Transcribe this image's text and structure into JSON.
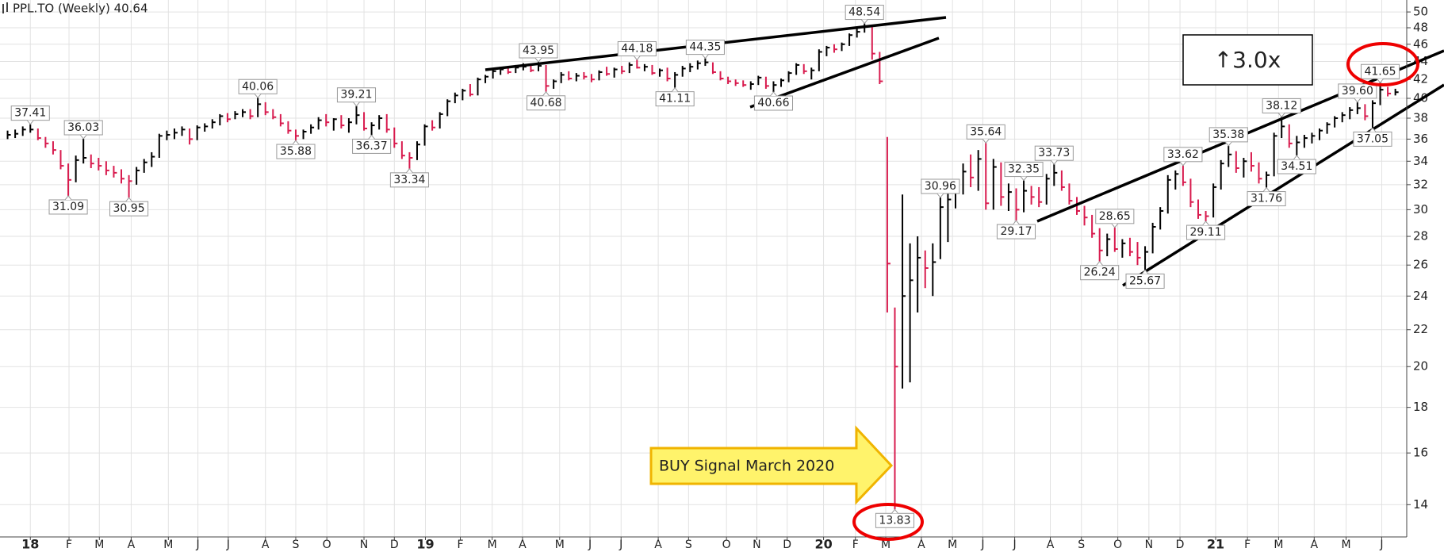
{
  "chart_data": {
    "type": "ohlc",
    "title": "PPL.TO (Weekly) 40.64",
    "log_scale": true,
    "grid": true,
    "up_color": "#000000",
    "down_color": "#d81b4e",
    "ylim": [
      12.88,
      51.57
    ],
    "yticks": [
      14,
      16,
      18,
      20,
      22,
      24,
      26,
      28,
      30,
      32,
      34,
      36,
      38,
      40,
      42,
      44,
      46,
      48,
      50
    ],
    "xlim": [
      -1,
      184.5
    ],
    "xticks": [
      {
        "value": 3.0,
        "label": "18"
      },
      {
        "value": 8.1,
        "label": "F"
      },
      {
        "value": 12.1,
        "label": "M"
      },
      {
        "value": 16.3,
        "label": "A"
      },
      {
        "value": 21.2,
        "label": "M"
      },
      {
        "value": 25.1,
        "label": "J"
      },
      {
        "value": 29.1,
        "label": "J"
      },
      {
        "value": 34.0,
        "label": "A"
      },
      {
        "value": 38.0,
        "label": "S"
      },
      {
        "value": 42.1,
        "label": "O"
      },
      {
        "value": 47.0,
        "label": "N"
      },
      {
        "value": 51.0,
        "label": "D"
      },
      {
        "value": 55.1,
        "label": "19"
      },
      {
        "value": 59.7,
        "label": "F"
      },
      {
        "value": 63.9,
        "label": "M"
      },
      {
        "value": 67.9,
        "label": "A"
      },
      {
        "value": 72.8,
        "label": "M"
      },
      {
        "value": 76.8,
        "label": "J"
      },
      {
        "value": 80.9,
        "label": "J"
      },
      {
        "value": 85.8,
        "label": "A"
      },
      {
        "value": 89.8,
        "label": "S"
      },
      {
        "value": 94.8,
        "label": "O"
      },
      {
        "value": 98.8,
        "label": "N"
      },
      {
        "value": 102.8,
        "label": "D"
      },
      {
        "value": 107.6,
        "label": "20"
      },
      {
        "value": 111.8,
        "label": "F"
      },
      {
        "value": 115.8,
        "label": "M"
      },
      {
        "value": 120.5,
        "label": "A"
      },
      {
        "value": 124.6,
        "label": "M"
      },
      {
        "value": 128.6,
        "label": "J"
      },
      {
        "value": 132.8,
        "label": "J"
      },
      {
        "value": 137.5,
        "label": "A"
      },
      {
        "value": 141.6,
        "label": "S"
      },
      {
        "value": 146.4,
        "label": "O"
      },
      {
        "value": 150.5,
        "label": "N"
      },
      {
        "value": 154.6,
        "label": "D"
      },
      {
        "value": 159.3,
        "label": "21"
      },
      {
        "value": 163.5,
        "label": "F"
      },
      {
        "value": 167.6,
        "label": "M"
      },
      {
        "value": 172.3,
        "label": "A"
      },
      {
        "value": 176.5,
        "label": "M"
      },
      {
        "value": 181.2,
        "label": "J"
      }
    ],
    "high": [
      36.8,
      36.9,
      37.2,
      37.41,
      37.0,
      36.2,
      35.8,
      35.0,
      33.8,
      34.5,
      36.03,
      34.6,
      34.3,
      34.0,
      33.6,
      33.3,
      32.8,
      33.5,
      34.2,
      34.8,
      36.5,
      36.8,
      37.0,
      37.2,
      37.0,
      37.3,
      37.5,
      37.9,
      38.4,
      38.5,
      38.7,
      38.9,
      38.9,
      40.06,
      39.6,
      38.9,
      38.4,
      37.7,
      36.9,
      36.9,
      37.4,
      38.1,
      38.4,
      38.0,
      38.3,
      38.0,
      39.21,
      38.6,
      37.6,
      38.3,
      38.4,
      37.1,
      35.8,
      34.8,
      35.8,
      37.4,
      37.8,
      38.6,
      39.9,
      40.6,
      41.0,
      41.5,
      42.2,
      42.5,
      43.2,
      43.4,
      43.5,
      43.6,
      43.8,
      43.7,
      43.95,
      43.6,
      42.0,
      42.8,
      42.9,
      42.7,
      42.8,
      42.6,
      43.0,
      43.4,
      43.3,
      43.5,
      43.9,
      44.18,
      43.7,
      43.6,
      43.2,
      43.3,
      42.8,
      43.5,
      43.8,
      44.1,
      44.35,
      43.9,
      42.9,
      42.3,
      42.0,
      41.9,
      41.8,
      42.4,
      42.3,
      41.8,
      42.1,
      42.9,
      43.8,
      43.7,
      43.3,
      45.4,
      45.8,
      46.0,
      46.2,
      47.3,
      47.9,
      48.54,
      48.2,
      45.1,
      36.2,
      23.3,
      31.2,
      27.5,
      28.0,
      27.0,
      27.5,
      30.96,
      31.5,
      32.4,
      33.8,
      34.6,
      35.0,
      35.64,
      34.2,
      33.9,
      32.1,
      31.7,
      32.35,
      31.9,
      31.8,
      32.9,
      33.73,
      33.2,
      32.1,
      31.0,
      30.3,
      29.6,
      28.6,
      28.2,
      28.65,
      27.8,
      27.9,
      27.6,
      27.3,
      29.0,
      30.2,
      32.8,
      33.2,
      33.62,
      32.5,
      30.8,
      29.9,
      32.1,
      34.1,
      35.38,
      34.9,
      34.3,
      34.8,
      33.9,
      33.1,
      36.6,
      38.12,
      37.4,
      36.3,
      36.4,
      36.6,
      37.0,
      37.6,
      38.2,
      38.6,
      39.1,
      39.6,
      39.4,
      39.8,
      41.65,
      41.2,
      41.0
    ],
    "low": [
      36.0,
      36.1,
      36.3,
      36.6,
      35.9,
      35.2,
      34.6,
      33.3,
      31.09,
      32.2,
      33.8,
      33.4,
      33.2,
      32.8,
      32.6,
      32.1,
      30.95,
      32.0,
      33.0,
      33.5,
      34.3,
      35.9,
      36.0,
      36.3,
      35.5,
      35.9,
      36.7,
      37.0,
      37.3,
      37.6,
      37.9,
      38.1,
      37.9,
      38.1,
      38.3,
      37.9,
      37.2,
      36.5,
      35.88,
      36.0,
      36.5,
      36.9,
      37.2,
      36.8,
      37.0,
      36.6,
      37.4,
      36.8,
      36.37,
      36.9,
      36.6,
      35.2,
      34.2,
      33.34,
      34.1,
      35.4,
      36.8,
      37.0,
      38.2,
      39.5,
      39.8,
      40.2,
      40.3,
      41.6,
      42.1,
      42.5,
      42.6,
      42.7,
      43.0,
      42.8,
      42.9,
      40.68,
      41.0,
      41.6,
      41.9,
      41.8,
      42.0,
      41.7,
      41.9,
      42.4,
      42.2,
      42.6,
      42.7,
      43.2,
      42.9,
      42.5,
      42.3,
      41.8,
      41.11,
      42.3,
      42.8,
      43.1,
      43.5,
      42.6,
      41.9,
      41.5,
      41.3,
      41.2,
      40.9,
      41.4,
      41.0,
      40.66,
      41.2,
      41.7,
      42.5,
      42.6,
      42.0,
      42.9,
      44.6,
      45.0,
      45.2,
      45.8,
      46.8,
      47.4,
      44.2,
      41.5,
      23.0,
      13.83,
      18.9,
      19.2,
      23.0,
      24.5,
      24.0,
      26.4,
      27.6,
      30.1,
      31.2,
      31.8,
      31.5,
      30.0,
      30.0,
      30.3,
      29.9,
      29.17,
      29.8,
      30.4,
      30.2,
      30.4,
      31.9,
      31.5,
      30.4,
      29.6,
      28.8,
      27.9,
      26.24,
      26.6,
      26.9,
      26.5,
      26.6,
      26.0,
      25.67,
      26.8,
      28.5,
      29.7,
      31.6,
      31.9,
      30.2,
      29.3,
      29.11,
      29.4,
      31.6,
      33.5,
      33.0,
      32.6,
      33.1,
      32.1,
      31.76,
      32.7,
      36.1,
      35.2,
      34.51,
      35.2,
      35.6,
      35.9,
      36.5,
      37.1,
      37.6,
      37.9,
      38.4,
      37.8,
      37.05,
      39.3,
      40.2,
      40.3
    ],
    "close": [
      36.4,
      36.5,
      36.9,
      36.9,
      36.1,
      35.6,
      35.0,
      33.6,
      32.4,
      34.1,
      34.3,
      33.8,
      33.6,
      33.2,
      33.0,
      32.5,
      32.3,
      33.2,
      33.9,
      34.4,
      36.3,
      36.4,
      36.6,
      36.9,
      36.0,
      37.1,
      37.2,
      37.6,
      38.2,
      37.9,
      38.4,
      38.6,
      38.2,
      39.4,
      38.6,
      38.1,
      37.5,
      36.8,
      36.3,
      36.7,
      37.1,
      37.8,
      37.6,
      37.9,
      37.3,
      37.6,
      38.3,
      37.0,
      37.3,
      38.0,
      36.9,
      35.6,
      34.5,
      34.3,
      35.5,
      37.2,
      37.1,
      38.4,
      39.7,
      40.3,
      40.8,
      40.4,
      42.0,
      42.3,
      42.9,
      43.1,
      42.8,
      43.3,
      43.4,
      43.0,
      43.5,
      41.3,
      41.8,
      42.5,
      42.1,
      42.4,
      42.3,
      42.0,
      42.8,
      42.6,
      43.1,
      42.9,
      43.6,
      43.3,
      43.4,
      42.7,
      43.0,
      42.1,
      42.5,
      43.2,
      43.4,
      43.8,
      43.9,
      42.8,
      42.1,
      41.8,
      41.6,
      41.4,
      41.5,
      42.2,
      41.3,
      41.4,
      41.9,
      42.7,
      43.6,
      42.9,
      43.0,
      45.1,
      45.6,
      45.4,
      46.0,
      47.1,
      47.5,
      48.1,
      44.9,
      41.8,
      26.1,
      20.0,
      24.0,
      25.0,
      26.5,
      25.8,
      26.2,
      30.2,
      30.8,
      31.9,
      33.1,
      32.6,
      34.2,
      30.5,
      33.5,
      31.0,
      31.4,
      30.0,
      31.5,
      31.0,
      30.6,
      32.5,
      33.0,
      31.8,
      30.7,
      29.9,
      29.4,
      28.2,
      27.0,
      27.8,
      27.1,
      27.5,
      26.9,
      26.5,
      26.9,
      28.7,
      29.9,
      32.4,
      32.9,
      32.2,
      30.6,
      29.6,
      29.5,
      31.8,
      33.8,
      34.6,
      33.4,
      34.0,
      33.6,
      32.5,
      32.8,
      36.3,
      37.2,
      35.6,
      35.7,
      36.1,
      36.3,
      36.8,
      37.4,
      38.0,
      38.3,
      38.8,
      39.0,
      38.2,
      39.5,
      40.9,
      40.5,
      40.64
    ],
    "annotations": [
      {
        "index": 3,
        "value": 37.41
      },
      {
        "index": 8,
        "value": 31.09
      },
      {
        "index": 10,
        "value": 36.03
      },
      {
        "index": 16,
        "value": 30.95
      },
      {
        "index": 33,
        "value": 40.06
      },
      {
        "index": 38,
        "value": 35.88
      },
      {
        "index": 46,
        "value": 39.21
      },
      {
        "index": 48,
        "value": 36.37
      },
      {
        "index": 53,
        "value": 33.34
      },
      {
        "index": 70,
        "value": 43.95
      },
      {
        "index": 71,
        "value": 40.68
      },
      {
        "index": 83,
        "value": 44.18
      },
      {
        "index": 88,
        "value": 41.11
      },
      {
        "index": 92,
        "value": 44.35
      },
      {
        "index": 101,
        "value": 40.66
      },
      {
        "index": 113,
        "value": 48.54
      },
      {
        "index": 117,
        "value": 13.83
      },
      {
        "index": 123,
        "value": 30.96
      },
      {
        "index": 129,
        "value": 35.64
      },
      {
        "index": 133,
        "value": 29.17
      },
      {
        "index": 134,
        "value": 32.35
      },
      {
        "index": 138,
        "value": 33.73
      },
      {
        "index": 144,
        "value": 26.24
      },
      {
        "index": 146,
        "value": 28.65
      },
      {
        "index": 150,
        "value": 25.67
      },
      {
        "index": 155,
        "value": 33.62
      },
      {
        "index": 158,
        "value": 29.11
      },
      {
        "index": 161,
        "value": 35.38
      },
      {
        "index": 166,
        "value": 31.76
      },
      {
        "index": 168,
        "value": 38.12
      },
      {
        "index": 170,
        "value": 34.51
      },
      {
        "index": 178,
        "value": 39.6,
        "label": "39.60"
      },
      {
        "index": 180,
        "value": 37.05
      },
      {
        "index": 181,
        "value": 41.65
      }
    ],
    "multiplier_note": "↑3.0x",
    "signal_note": "BUY Signal March 2020"
  }
}
